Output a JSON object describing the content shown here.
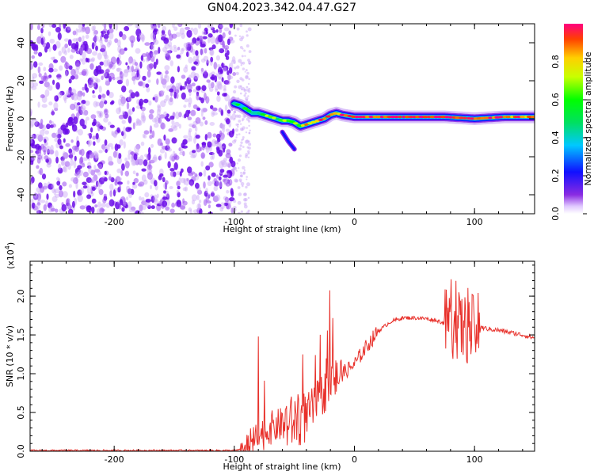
{
  "title": "GN04.2023.342.04.47.G27",
  "chart_data": [
    {
      "type": "heatmap",
      "xlabel": "Height of straight line (km)",
      "ylabel": "Frequency (Hz)",
      "xlim": [
        -270,
        150
      ],
      "ylim": [
        -50,
        50
      ],
      "xticks": [
        -200,
        -100,
        0,
        100
      ],
      "yticks": [
        -40,
        -20,
        0,
        20,
        40
      ],
      "colorbar": {
        "label": "Normalized spectral amplitude",
        "range": [
          0,
          1
        ],
        "ticks": [
          "0.0",
          "0.2",
          "0.4",
          "0.6",
          "0.8"
        ],
        "colormap": [
          "#ffffff",
          "#8a2be2",
          "#1010ff",
          "#00c8ff",
          "#00e060",
          "#00ff00",
          "#c8ff00",
          "#ffd000",
          "#ff4000",
          "#ff0080"
        ]
      },
      "noise_region_x": [
        -270,
        -100
      ],
      "ridge": {
        "x": [
          -100,
          -95,
          -90,
          -85,
          -80,
          -75,
          -70,
          -65,
          -60,
          -55,
          -50,
          -45,
          -40,
          -35,
          -30,
          -25,
          -20,
          -15,
          -10,
          0,
          25,
          50,
          75,
          100,
          125,
          150
        ],
        "y": [
          8,
          7,
          5,
          3,
          3,
          2,
          1,
          0,
          -1,
          -1,
          -2,
          -4,
          -3,
          -2,
          -1,
          0,
          2,
          3,
          2,
          1,
          1,
          1,
          1,
          0,
          1,
          1
        ],
        "amp": [
          0.35,
          0.45,
          0.45,
          0.5,
          0.5,
          0.55,
          0.6,
          0.5,
          0.55,
          0.55,
          0.6,
          0.7,
          0.75,
          0.8,
          0.85,
          0.9,
          0.9,
          0.85,
          0.9,
          0.95,
          0.95,
          0.95,
          0.95,
          0.9,
          0.9,
          0.85
        ]
      },
      "side_branch": {
        "x": [
          -60,
          -55,
          -50
        ],
        "y": [
          -7,
          -12,
          -16
        ]
      }
    },
    {
      "type": "line",
      "xlabel": "Height of straight line (km)",
      "ylabel": "SNR (10 * v/v)",
      "yexponent": "4",
      "xlim": [
        -270,
        150
      ],
      "ylim": [
        0,
        2.45
      ],
      "xticks": [
        -200,
        -100,
        0,
        100
      ],
      "yticks": [
        "0.0",
        "0.5",
        "1.0",
        "1.5",
        "2.0"
      ],
      "series": [
        {
          "color": "#e8302a",
          "x": [
            -270,
            -200,
            -150,
            -100,
            -90,
            -80,
            -70,
            -60,
            -50,
            -40,
            -30,
            -20,
            -10,
            0,
            10,
            20,
            30,
            40,
            50,
            60,
            70,
            80,
            85,
            90,
            95,
            100,
            105,
            110,
            120,
            130,
            140,
            150
          ],
          "y": [
            0.01,
            0.01,
            0.01,
            0.01,
            0.03,
            0.18,
            0.3,
            0.35,
            0.38,
            0.45,
            0.65,
            0.88,
            1.0,
            1.12,
            1.35,
            1.55,
            1.67,
            1.72,
            1.72,
            1.71,
            1.68,
            1.62,
            1.62,
            1.6,
            1.55,
            1.6,
            1.6,
            1.58,
            1.56,
            1.53,
            1.5,
            1.46
          ]
        }
      ]
    }
  ]
}
